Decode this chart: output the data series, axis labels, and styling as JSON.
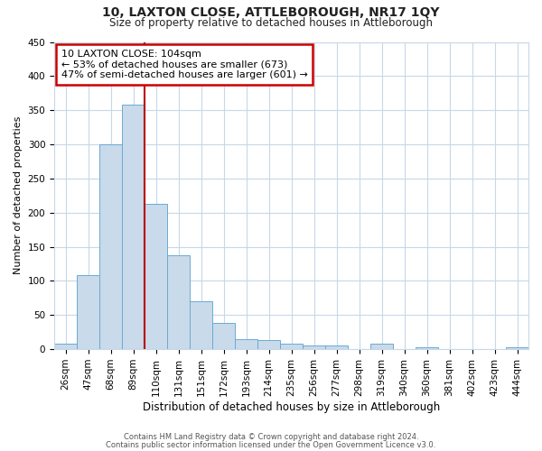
{
  "title": "10, LAXTON CLOSE, ATTLEBOROUGH, NR17 1QY",
  "subtitle": "Size of property relative to detached houses in Attleborough",
  "xlabel": "Distribution of detached houses by size in Attleborough",
  "ylabel": "Number of detached properties",
  "categories": [
    "26sqm",
    "47sqm",
    "68sqm",
    "89sqm",
    "110sqm",
    "131sqm",
    "151sqm",
    "172sqm",
    "193sqm",
    "214sqm",
    "235sqm",
    "256sqm",
    "277sqm",
    "298sqm",
    "319sqm",
    "340sqm",
    "360sqm",
    "381sqm",
    "402sqm",
    "423sqm",
    "444sqm"
  ],
  "values": [
    8,
    108,
    300,
    358,
    213,
    137,
    70,
    38,
    15,
    13,
    8,
    5,
    5,
    0,
    8,
    0,
    3,
    0,
    0,
    0,
    3
  ],
  "bar_color": "#c9daea",
  "bar_edge_color": "#6aaad4",
  "red_line_color": "#bb0000",
  "annotation_title": "10 LAXTON CLOSE: 104sqm",
  "annotation_line1": "← 53% of detached houses are smaller (673)",
  "annotation_line2": "47% of semi-detached houses are larger (601) →",
  "annotation_box_facecolor": "#ffffff",
  "annotation_box_edgecolor": "#cc0000",
  "ylim": [
    0,
    450
  ],
  "yticks": [
    0,
    50,
    100,
    150,
    200,
    250,
    300,
    350,
    400,
    450
  ],
  "footer1": "Contains HM Land Registry data © Crown copyright and database right 2024.",
  "footer2": "Contains public sector information licensed under the Open Government Licence v3.0.",
  "background_color": "#ffffff",
  "grid_color": "#c8d8e8",
  "title_fontsize": 10,
  "subtitle_fontsize": 8.5,
  "ylabel_fontsize": 8,
  "xlabel_fontsize": 8.5,
  "tick_fontsize": 7.5,
  "footer_fontsize": 6,
  "annot_fontsize": 8
}
